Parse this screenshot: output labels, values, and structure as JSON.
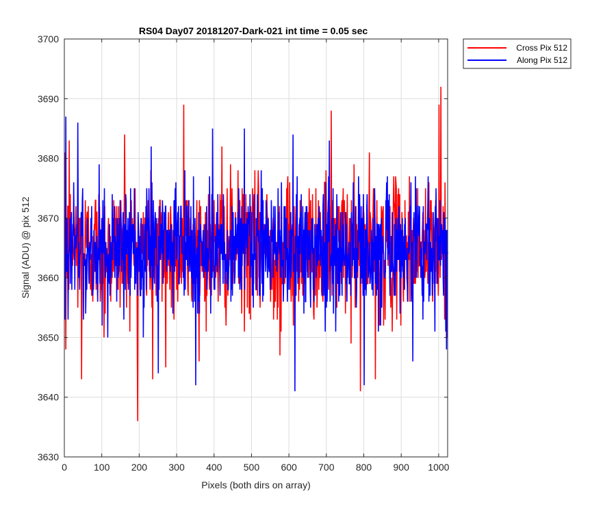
{
  "chart_data": {
    "type": "line",
    "title": "RS04 Day07 20181207-Dark-021 int time = 0.05 sec",
    "xlabel": "Pixels (both dirs on array)",
    "ylabel": "Signal (ADU) @ pix 512",
    "xlim": [
      0,
      1024
    ],
    "ylim": [
      3630,
      3700
    ],
    "xticks": [
      0,
      100,
      200,
      300,
      400,
      500,
      600,
      700,
      800,
      900,
      1000
    ],
    "yticks": [
      3630,
      3640,
      3650,
      3660,
      3670,
      3680,
      3690,
      3700
    ],
    "grid": true,
    "legend_position": "outside-top-right",
    "noise_mean": 3665,
    "series": [
      {
        "name": "Cross Pix 512",
        "color": "#ff0000",
        "peaks": [
          {
            "x": 3,
            "y": 3648
          },
          {
            "x": 12,
            "y": 3683
          },
          {
            "x": 45,
            "y": 3643
          },
          {
            "x": 105,
            "y": 3650
          },
          {
            "x": 160,
            "y": 3684
          },
          {
            "x": 195,
            "y": 3636
          },
          {
            "x": 235,
            "y": 3643
          },
          {
            "x": 270,
            "y": 3645
          },
          {
            "x": 318,
            "y": 3689
          },
          {
            "x": 420,
            "y": 3682
          },
          {
            "x": 575,
            "y": 3647
          },
          {
            "x": 712,
            "y": 3688
          },
          {
            "x": 790,
            "y": 3641
          },
          {
            "x": 830,
            "y": 3643
          },
          {
            "x": 1000,
            "y": 3689
          },
          {
            "x": 1005,
            "y": 3692
          },
          {
            "x": 1015,
            "y": 3653
          }
        ]
      },
      {
        "name": "Along Pix 512",
        "color": "#0000ff",
        "peaks": [
          {
            "x": 3,
            "y": 3687
          },
          {
            "x": 35,
            "y": 3686
          },
          {
            "x": 100,
            "y": 3652
          },
          {
            "x": 210,
            "y": 3650
          },
          {
            "x": 250,
            "y": 3644
          },
          {
            "x": 350,
            "y": 3642
          },
          {
            "x": 395,
            "y": 3685
          },
          {
            "x": 480,
            "y": 3685
          },
          {
            "x": 615,
            "y": 3641
          },
          {
            "x": 800,
            "y": 3642
          },
          {
            "x": 930,
            "y": 3646
          },
          {
            "x": 1020,
            "y": 3648
          }
        ]
      }
    ]
  }
}
